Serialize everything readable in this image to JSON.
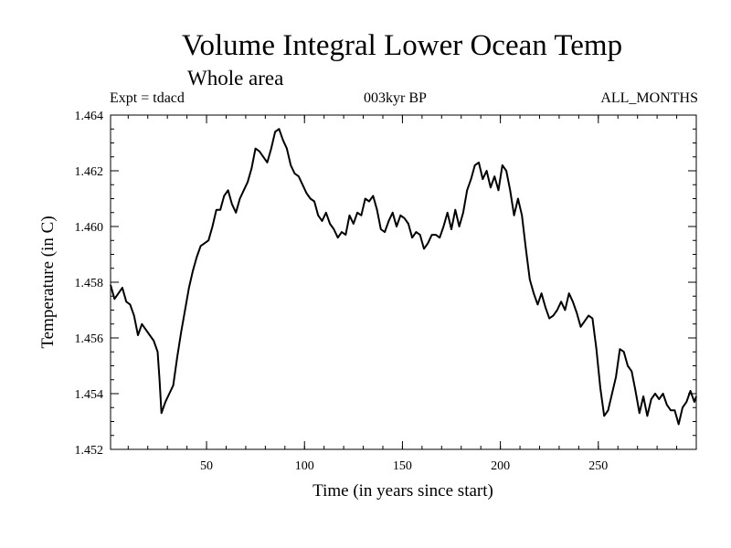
{
  "chart_data": {
    "type": "line",
    "title": "Volume Integral Lower Ocean Temp",
    "subtitle": "Whole area",
    "expt_label": "Expt = tdacd",
    "period_label": "003kyr BP",
    "months_label": "ALL_MONTHS",
    "xlabel": "Time (in years since start)",
    "ylabel": "Temperature (in C)",
    "xlim": [
      1,
      300
    ],
    "ylim": [
      1.452,
      1.464
    ],
    "x_ticks": [
      50,
      100,
      150,
      200,
      250
    ],
    "y_ticks": [
      "1.452",
      "1.454",
      "1.456",
      "1.458",
      "1.460",
      "1.462",
      "1.464"
    ],
    "series": [
      {
        "name": "Volume Integral Lower Ocean Temp",
        "points": [
          [
            1,
            1.4579
          ],
          [
            3,
            1.4574
          ],
          [
            5,
            1.4576
          ],
          [
            7,
            1.4578
          ],
          [
            9,
            1.4573
          ],
          [
            11,
            1.4572
          ],
          [
            13,
            1.4568
          ],
          [
            15,
            1.4561
          ],
          [
            17,
            1.4565
          ],
          [
            19,
            1.4563
          ],
          [
            21,
            1.4561
          ],
          [
            23,
            1.4559
          ],
          [
            25,
            1.4555
          ],
          [
            26,
            1.4545
          ],
          [
            27,
            1.4533
          ],
          [
            29,
            1.4537
          ],
          [
            31,
            1.454
          ],
          [
            33,
            1.4543
          ],
          [
            35,
            1.4553
          ],
          [
            37,
            1.4562
          ],
          [
            39,
            1.457
          ],
          [
            41,
            1.4578
          ],
          [
            43,
            1.4584
          ],
          [
            45,
            1.4589
          ],
          [
            47,
            1.4593
          ],
          [
            49,
            1.4594
          ],
          [
            51,
            1.4595
          ],
          [
            53,
            1.46
          ],
          [
            55,
            1.4606
          ],
          [
            57,
            1.4606
          ],
          [
            59,
            1.4611
          ],
          [
            61,
            1.4613
          ],
          [
            63,
            1.4608
          ],
          [
            65,
            1.4605
          ],
          [
            67,
            1.461
          ],
          [
            69,
            1.4613
          ],
          [
            71,
            1.4616
          ],
          [
            73,
            1.4621
          ],
          [
            75,
            1.4628
          ],
          [
            77,
            1.4627
          ],
          [
            79,
            1.4625
          ],
          [
            81,
            1.4623
          ],
          [
            83,
            1.4628
          ],
          [
            85,
            1.4634
          ],
          [
            87,
            1.4635
          ],
          [
            89,
            1.4631
          ],
          [
            91,
            1.4628
          ],
          [
            93,
            1.4622
          ],
          [
            95,
            1.4619
          ],
          [
            97,
            1.4618
          ],
          [
            99,
            1.4615
          ],
          [
            101,
            1.4612
          ],
          [
            103,
            1.461
          ],
          [
            105,
            1.4609
          ],
          [
            107,
            1.4604
          ],
          [
            109,
            1.4602
          ],
          [
            111,
            1.4605
          ],
          [
            113,
            1.4601
          ],
          [
            115,
            1.4599
          ],
          [
            117,
            1.4596
          ],
          [
            119,
            1.4598
          ],
          [
            121,
            1.4597
          ],
          [
            123,
            1.4604
          ],
          [
            125,
            1.4601
          ],
          [
            127,
            1.4605
          ],
          [
            129,
            1.4604
          ],
          [
            131,
            1.461
          ],
          [
            133,
            1.4609
          ],
          [
            135,
            1.4611
          ],
          [
            137,
            1.4606
          ],
          [
            139,
            1.4599
          ],
          [
            141,
            1.4598
          ],
          [
            143,
            1.4602
          ],
          [
            145,
            1.4605
          ],
          [
            147,
            1.46
          ],
          [
            149,
            1.4604
          ],
          [
            151,
            1.4603
          ],
          [
            153,
            1.4601
          ],
          [
            155,
            1.4596
          ],
          [
            157,
            1.4598
          ],
          [
            159,
            1.4597
          ],
          [
            161,
            1.4592
          ],
          [
            163,
            1.4594
          ],
          [
            165,
            1.4597
          ],
          [
            167,
            1.4597
          ],
          [
            169,
            1.4596
          ],
          [
            171,
            1.46
          ],
          [
            173,
            1.4605
          ],
          [
            175,
            1.4599
          ],
          [
            177,
            1.4606
          ],
          [
            179,
            1.46
          ],
          [
            181,
            1.4605
          ],
          [
            183,
            1.4613
          ],
          [
            185,
            1.4617
          ],
          [
            187,
            1.4622
          ],
          [
            189,
            1.4623
          ],
          [
            191,
            1.4617
          ],
          [
            193,
            1.462
          ],
          [
            195,
            1.4614
          ],
          [
            197,
            1.4618
          ],
          [
            199,
            1.4613
          ],
          [
            201,
            1.4622
          ],
          [
            203,
            1.462
          ],
          [
            205,
            1.4613
          ],
          [
            207,
            1.4604
          ],
          [
            209,
            1.461
          ],
          [
            211,
            1.4604
          ],
          [
            213,
            1.4592
          ],
          [
            215,
            1.4581
          ],
          [
            217,
            1.4576
          ],
          [
            219,
            1.4572
          ],
          [
            221,
            1.4576
          ],
          [
            223,
            1.4571
          ],
          [
            225,
            1.4567
          ],
          [
            227,
            1.4568
          ],
          [
            229,
            1.457
          ],
          [
            231,
            1.4573
          ],
          [
            233,
            1.457
          ],
          [
            235,
            1.4576
          ],
          [
            237,
            1.4573
          ],
          [
            239,
            1.4569
          ],
          [
            241,
            1.4564
          ],
          [
            243,
            1.4566
          ],
          [
            245,
            1.4568
          ],
          [
            247,
            1.4567
          ],
          [
            249,
            1.4556
          ],
          [
            251,
            1.4542
          ],
          [
            253,
            1.4532
          ],
          [
            255,
            1.4534
          ],
          [
            257,
            1.454
          ],
          [
            259,
            1.4546
          ],
          [
            261,
            1.4556
          ],
          [
            263,
            1.4555
          ],
          [
            265,
            1.455
          ],
          [
            267,
            1.4548
          ],
          [
            269,
            1.4541
          ],
          [
            271,
            1.4533
          ],
          [
            273,
            1.4539
          ],
          [
            275,
            1.4532
          ],
          [
            277,
            1.4538
          ],
          [
            279,
            1.454
          ],
          [
            281,
            1.4538
          ],
          [
            283,
            1.454
          ],
          [
            285,
            1.4536
          ],
          [
            287,
            1.4534
          ],
          [
            289,
            1.4534
          ],
          [
            291,
            1.4529
          ],
          [
            293,
            1.4535
          ],
          [
            295,
            1.4537
          ],
          [
            297,
            1.4541
          ],
          [
            299,
            1.4537
          ],
          [
            300,
            1.4539
          ]
        ]
      }
    ]
  }
}
